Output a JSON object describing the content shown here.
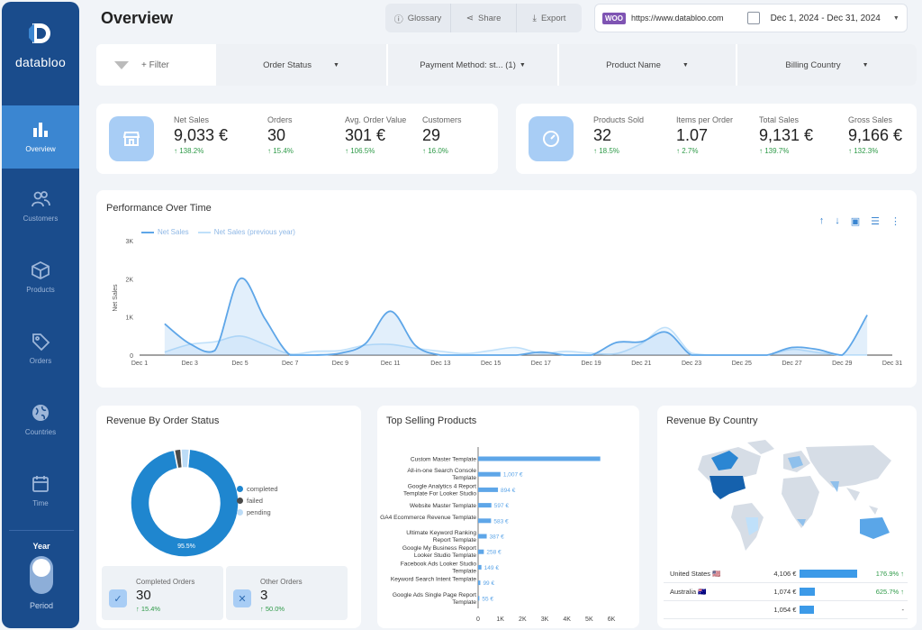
{
  "app": {
    "logo_text": "databloo",
    "page_title": "Overview"
  },
  "sidebar": {
    "items": [
      {
        "label": "Overview",
        "icon": "bar-chart-icon",
        "active": true
      },
      {
        "label": "Customers",
        "icon": "users-icon",
        "active": false
      },
      {
        "label": "Products",
        "icon": "box-icon",
        "active": false
      },
      {
        "label": "Orders",
        "icon": "tag-icon",
        "active": false
      },
      {
        "label": "Countries",
        "icon": "globe-icon",
        "active": false
      },
      {
        "label": "Time",
        "icon": "calendar-icon",
        "active": false
      }
    ],
    "period": {
      "label_top": "Year",
      "label_bottom": "Period"
    }
  },
  "toolbar": {
    "glossary": "Glossary",
    "share": "Share",
    "export": "Export"
  },
  "source": {
    "badge": "WOO",
    "url": "https://www.databloo.com",
    "date_range": "Dec 1, 2024 - Dec 31, 2024"
  },
  "filters": {
    "add_label": "+ Filter",
    "items": [
      "Order Status",
      "Payment Method: st... (1)",
      "Product Name",
      "Billing Country"
    ]
  },
  "kpis_left": [
    {
      "label": "Net Sales",
      "value": "9,033 €",
      "change": "↑ 138.2%"
    },
    {
      "label": "Orders",
      "value": "30",
      "change": "↑ 15.4%"
    },
    {
      "label": "Avg. Order Value",
      "value": "301 €",
      "change": "↑ 106.5%"
    },
    {
      "label": "Customers",
      "value": "29",
      "change": "↑ 16.0%"
    }
  ],
  "kpis_right": [
    {
      "label": "Products Sold",
      "value": "32",
      "change": "↑ 18.5%"
    },
    {
      "label": "Items per Order",
      "value": "1.07",
      "change": "↑ 2.7%"
    },
    {
      "label": "Total Sales",
      "value": "9,131 €",
      "change": "↑ 139.7%"
    },
    {
      "label": "Gross Sales",
      "value": "9,166 €",
      "change": "↑ 132.3%"
    }
  ],
  "performance": {
    "title": "Performance Over Time",
    "legend": [
      "Net Sales",
      "Net Sales (previous year)"
    ],
    "ylabel": "Net Sales"
  },
  "chart_data": [
    {
      "type": "area",
      "title": "Performance Over Time",
      "xlabel": "",
      "ylabel": "Net Sales",
      "ylim": [
        0,
        3000
      ],
      "yticks": [
        "0",
        "1K",
        "2K",
        "3K"
      ],
      "x_tick_labels": [
        "Dec 1",
        "Dec 3",
        "Dec 5",
        "Dec 7",
        "Dec 9",
        "Dec 11",
        "Dec 13",
        "Dec 15",
        "Dec 17",
        "Dec 19",
        "Dec 21",
        "Dec 23",
        "Dec 25",
        "Dec 27",
        "Dec 29",
        "Dec 31"
      ],
      "x": [
        2,
        3,
        4,
        5,
        6,
        7,
        8,
        9,
        10,
        11,
        12,
        13,
        14,
        15,
        16,
        17,
        18,
        19,
        20,
        21,
        22,
        23,
        24,
        25,
        26,
        27,
        28,
        29,
        30
      ],
      "series": [
        {
          "name": "Net Sales",
          "values": [
            820,
            300,
            120,
            2000,
            950,
            0,
            0,
            50,
            300,
            1150,
            250,
            0,
            0,
            0,
            0,
            80,
            0,
            0,
            330,
            350,
            600,
            0,
            0,
            0,
            0,
            200,
            150,
            0,
            1050
          ]
        },
        {
          "name": "Net Sales (previous year)",
          "values": [
            80,
            280,
            350,
            500,
            280,
            30,
            100,
            120,
            260,
            280,
            180,
            100,
            40,
            120,
            200,
            50,
            100,
            50,
            40,
            300,
            720,
            50,
            0,
            0,
            0,
            150,
            70,
            0,
            0
          ]
        }
      ],
      "grid": false,
      "legend_position": "top-left"
    },
    {
      "type": "pie",
      "title": "Revenue By Order Status",
      "categories": [
        "completed",
        "failed",
        "pending"
      ],
      "values": [
        95.5,
        2.0,
        2.5
      ],
      "data_labels": [
        "95.5%"
      ],
      "legend_position": "right"
    },
    {
      "type": "bar",
      "orientation": "horizontal",
      "title": "Top Selling Products",
      "categories": [
        "Custom Master Template",
        "All-in-one Search Console Template",
        "Google Analytics 4 Report Template For Looker Studio",
        "Website Master Template",
        "GA4 Ecommerce Revenue Template",
        "Ultimate Keyword Ranking Report Template",
        "Google My Business Report Looker Studio Template",
        "Facebook Ads Looker Studio Template",
        "Keyword Search Intent Template",
        "Google Ads Single Page Report Template"
      ],
      "values": [
        5500,
        1007,
        894,
        597,
        583,
        387,
        258,
        149,
        99,
        55
      ],
      "data_labels": [
        "",
        "1,007 €",
        "894 €",
        "597 €",
        "583 €",
        "387 €",
        "258 €",
        "149 €",
        "99 €",
        "55 €"
      ],
      "xlim": [
        0,
        6000
      ],
      "xticks": [
        "0",
        "1K",
        "2K",
        "3K",
        "4K",
        "5K",
        "6K"
      ]
    },
    {
      "type": "table",
      "title": "Revenue By Country",
      "rows": [
        {
          "country": "United States 🇺🇸",
          "revenue": "4,106 €",
          "bar_fraction": 1.0,
          "change": "176.9% ↑"
        },
        {
          "country": "Australia 🇦🇺",
          "revenue": "1,074 €",
          "bar_fraction": 0.26,
          "change": "625.7% ↑"
        },
        {
          "country": "",
          "revenue": "1,054 €",
          "bar_fraction": 0.25,
          "change": "-"
        }
      ]
    }
  ],
  "order_status": {
    "legend": [
      "completed",
      "failed",
      "pending"
    ],
    "colors": [
      "#1f86cf",
      "#4a4a4a",
      "#bcdcf7"
    ],
    "center_label": "95.5%",
    "completed": {
      "label": "Completed Orders",
      "value": "30",
      "change": "↑ 15.4%"
    },
    "other": {
      "label": "Other Orders",
      "value": "3",
      "change": "↑ 50.0%"
    }
  },
  "top_products": {
    "title": "Top Selling Products"
  },
  "country": {
    "title": "Revenue By Country"
  }
}
